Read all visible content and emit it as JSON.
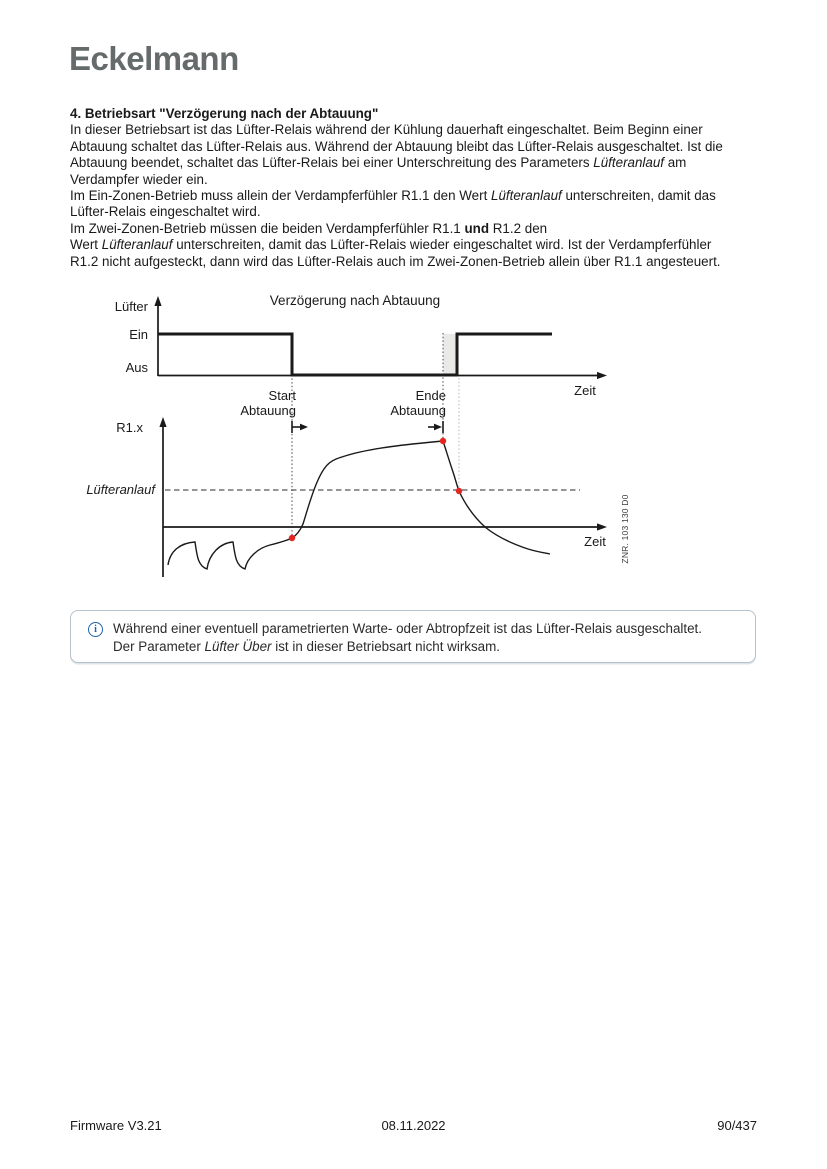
{
  "logo": {
    "text": "Eckelmann",
    "color": "#656b6b"
  },
  "article": {
    "heading": "4. Betriebsart \"Verzögerung nach der Abtauung\"",
    "lines": [
      [
        {
          "t": "In dieser Betriebsart ist das Lüfter-Relais während der Kühlung dauerhaft eingeschaltet. Beim Beginn einer"
        }
      ],
      [
        {
          "t": "Abtauung schaltet das Lüfter-Relais aus. Während der Abtauung bleibt das Lüfter-Relais ausgeschaltet. Ist die"
        }
      ],
      [
        {
          "t": "Abtauung beendet, schaltet das Lüfter-Relais bei einer Unterschreitung des Parameters "
        },
        {
          "t": "Lüfteranlauf",
          "s": "i"
        },
        {
          "t": " am"
        }
      ],
      [
        {
          "t": "Verdampfer wieder ein."
        }
      ],
      [
        {
          "t": "Im Ein-Zonen-Betrieb muss allein der Verdampferfühler R1.1 den Wert "
        },
        {
          "t": "Lüfteranlauf",
          "s": "i"
        },
        {
          "t": " unterschreiten, damit das"
        }
      ],
      [
        {
          "t": "Lüfter-Relais eingeschaltet wird."
        }
      ],
      [
        {
          "t": "Im Zwei-Zonen-Betrieb müssen die beiden Verdampferfühler R1.1 "
        },
        {
          "t": "und",
          "s": "b"
        },
        {
          "t": " R1.2 den"
        }
      ],
      [
        {
          "t": "Wert "
        },
        {
          "t": "Lüfteranlauf",
          "s": "i"
        },
        {
          "t": " unterschreiten, damit das Lüfter-Relais wieder eingeschaltet wird. Ist der Verdampferfühler"
        }
      ],
      [
        {
          "t": "R1.2 nicht aufgesteckt, dann wird das Lüfter-Relais auch im Zwei-Zonen-Betrieb allein über R1.1 angesteuert."
        }
      ]
    ]
  },
  "diagram": {
    "title": "Verzögerung nach Abtauung",
    "fan_axis_label": "Lüfter",
    "fan_on_label": "Ein",
    "fan_off_label": "Aus",
    "time_label_top": "Zeit",
    "time_label_bottom": "Zeit",
    "sensor_axis_label": "R1.x",
    "threshold_label": "Lüfteranlauf",
    "event_start_line1": "Start",
    "event_start_line2": "Abtauung",
    "event_end_line1": "Ende",
    "event_end_line2": "Abtauung",
    "drawing_number": "ZNR. 103 130 D0",
    "colors": {
      "marker_red": "#e52620",
      "shade_grey": "#e9e9e7",
      "line": "#1a1a1a"
    },
    "semantics": {
      "type": "timing-diagram",
      "fan_states": [
        "Ein bis Start Abtauung",
        "Aus von Start Abtauung bis Unterschreitung Lüfteranlauf nach Ende Abtauung",
        "danach wieder Ein"
      ],
      "marked_points": [
        "Kurve bei Start Abtauung",
        "Kurvenmaximum bei Ende Abtauung",
        "Unterschreitung Lüfteranlauf"
      ]
    }
  },
  "info_box": {
    "lines": [
      [
        {
          "t": "Während einer eventuell parametrierten Warte- oder Abtropfzeit ist das Lüfter-Relais ausgeschaltet."
        }
      ],
      [
        {
          "t": "Der Parameter "
        },
        {
          "t": "Lüfter Über",
          "s": "i"
        },
        {
          "t": " ist in dieser Betriebsart nicht wirksam."
        }
      ]
    ]
  },
  "footer": {
    "left": "Firmware V3.21",
    "center": "08.11.2022",
    "right": "90/437"
  }
}
